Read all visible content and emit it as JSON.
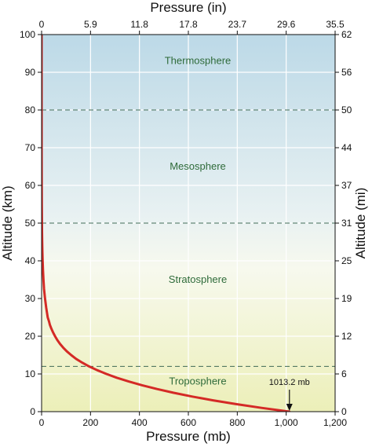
{
  "chart_data": {
    "type": "line",
    "xlabel_bottom": "Pressure (mb)",
    "xlabel_top": "Pressure (in)",
    "ylabel_left": "Altitude (km)",
    "ylabel_right": "Altitude (mi)",
    "xlim": [
      0,
      1200
    ],
    "ylim": [
      0,
      100
    ],
    "x_ticks_bottom": [
      0,
      200,
      400,
      600,
      800,
      1000,
      1200
    ],
    "x_tick_labels_bottom": [
      "0",
      "200",
      "400",
      "600",
      "800",
      "1,000",
      "1,200"
    ],
    "x_tick_labels_top": [
      "0",
      "5.9",
      "11.8",
      "17.8",
      "23.7",
      "29.6",
      "35.5"
    ],
    "y_ticks_left": [
      0,
      10,
      20,
      30,
      40,
      50,
      60,
      70,
      80,
      90,
      100
    ],
    "y_tick_labels_left": [
      "0",
      "10",
      "20",
      "30",
      "40",
      "50",
      "60",
      "70",
      "80",
      "90",
      "100"
    ],
    "y_tick_labels_right": [
      "0",
      "6",
      "12",
      "19",
      "25",
      "31",
      "37",
      "44",
      "50",
      "56",
      "62"
    ],
    "series": [
      {
        "color": "#d42a26",
        "points": [
          [
            1013.2,
            0
          ],
          [
            899,
            1
          ],
          [
            795,
            2
          ],
          [
            701,
            3
          ],
          [
            616,
            4
          ],
          [
            540,
            5
          ],
          [
            472,
            6
          ],
          [
            411,
            7
          ],
          [
            356,
            8
          ],
          [
            307,
            9
          ],
          [
            265,
            10
          ],
          [
            227,
            11
          ],
          [
            194,
            12
          ],
          [
            166,
            13
          ],
          [
            141,
            14
          ],
          [
            121,
            15
          ],
          [
            103,
            16
          ],
          [
            88,
            17
          ],
          [
            75,
            18
          ],
          [
            64,
            19
          ],
          [
            55,
            20
          ],
          [
            47,
            21
          ],
          [
            40,
            22
          ],
          [
            34,
            23
          ],
          [
            30,
            24
          ],
          [
            25,
            25
          ],
          [
            19,
            27.5
          ],
          [
            14,
            30
          ],
          [
            10,
            32.5
          ],
          [
            7.6,
            35
          ],
          [
            5.7,
            37.5
          ],
          [
            4.3,
            40
          ],
          [
            3.2,
            42.5
          ],
          [
            2.4,
            45
          ],
          [
            1.8,
            47.5
          ],
          [
            1.4,
            50
          ],
          [
            0.8,
            55
          ],
          [
            0.5,
            60
          ],
          [
            0.3,
            65
          ],
          [
            0.15,
            70
          ],
          [
            0.05,
            80
          ],
          [
            0.01,
            90
          ],
          [
            0.003,
            100
          ]
        ]
      }
    ],
    "layers": [
      {
        "name": "Thermosphere",
        "label_y": 93
      },
      {
        "name": "Mesosphere",
        "label_y": 65
      },
      {
        "name": "Stratosphere",
        "label_y": 35
      },
      {
        "name": "Troposphere",
        "label_y": 8
      }
    ],
    "boundaries_km": [
      12,
      50,
      80
    ],
    "annotation": {
      "text": "1013.2 mb",
      "x": 1013.2,
      "y": 0
    },
    "grid": true,
    "colors": {
      "curve": "#d42a26",
      "layer_label": "#2f6b3a",
      "boundary": "#3f6a55",
      "grid": "#ffffff",
      "bg_top": "#bcd9e7",
      "bg_mid": "#f7f9ee",
      "bg_bottom": "#ecefb8"
    }
  }
}
